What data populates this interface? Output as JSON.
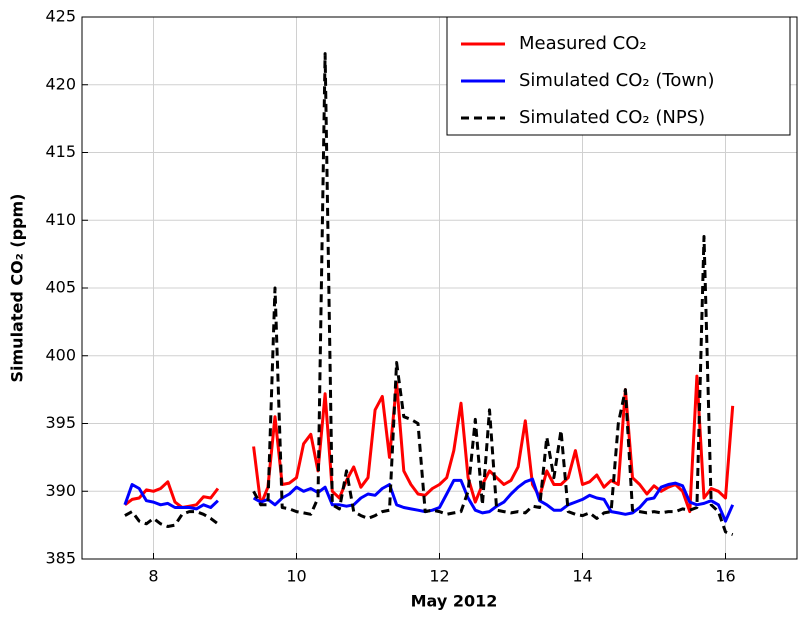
{
  "chart_data": {
    "type": "line",
    "ylabel": "Simulated CO₂ (ppm)",
    "xlabel": "May 2012",
    "x": [
      7.6,
      7.7,
      7.8,
      7.9,
      8.0,
      8.1,
      8.2,
      8.3,
      8.4,
      8.5,
      8.6,
      8.7,
      8.8,
      8.9,
      9.2,
      9.4,
      9.5,
      9.6,
      9.7,
      9.8,
      9.9,
      10.0,
      10.1,
      10.2,
      10.3,
      10.4,
      10.5,
      10.6,
      10.7,
      10.8,
      10.9,
      11.0,
      11.1,
      11.2,
      11.3,
      11.4,
      11.5,
      11.6,
      11.7,
      11.8,
      11.9,
      12.0,
      12.1,
      12.2,
      12.3,
      12.4,
      12.5,
      12.6,
      12.7,
      12.8,
      12.9,
      13.0,
      13.1,
      13.2,
      13.3,
      13.4,
      13.5,
      13.6,
      13.7,
      13.8,
      13.9,
      14.0,
      14.1,
      14.2,
      14.3,
      14.4,
      14.5,
      14.6,
      14.7,
      14.8,
      14.9,
      15.0,
      15.1,
      15.2,
      15.3,
      15.4,
      15.5,
      15.6,
      15.7,
      15.8,
      15.9,
      16.0,
      16.1
    ],
    "series": [
      {
        "name": "Measured CO₂",
        "color": "#ff0000",
        "dash": false,
        "values": [
          389.0,
          389.4,
          389.5,
          390.1,
          390.0,
          390.2,
          390.7,
          389.2,
          388.8,
          388.9,
          389.0,
          389.6,
          389.5,
          390.2,
          null,
          393.3,
          389.0,
          390.3,
          395.5,
          390.5,
          390.6,
          391.0,
          393.5,
          394.2,
          391.5,
          397.2,
          390.0,
          389.5,
          390.8,
          391.8,
          390.3,
          391.0,
          396.0,
          397.0,
          392.5,
          398.0,
          391.5,
          390.5,
          389.8,
          389.7,
          390.2,
          390.5,
          391.0,
          393.0,
          396.5,
          391.0,
          389.2,
          390.5,
          391.5,
          391.0,
          390.5,
          390.8,
          391.8,
          395.2,
          390.5,
          389.6,
          391.5,
          390.5,
          390.5,
          391.0,
          393.0,
          390.5,
          390.7,
          391.2,
          390.3,
          390.8,
          390.5,
          397.5,
          391.0,
          390.5,
          389.8,
          390.4,
          390.0,
          390.3,
          390.5,
          390.0,
          388.5,
          398.5,
          389.5,
          390.2,
          390.0,
          389.5,
          396.3
        ]
      },
      {
        "name": "Simulated CO₂ (Town)",
        "color": "#0000ff",
        "dash": false,
        "values": [
          389.0,
          390.5,
          390.2,
          389.3,
          389.2,
          389.0,
          389.1,
          388.8,
          388.8,
          388.8,
          388.7,
          389.0,
          388.8,
          389.3,
          null,
          389.5,
          389.2,
          389.4,
          389.0,
          389.5,
          389.8,
          390.3,
          390.0,
          390.2,
          389.9,
          390.3,
          389.0,
          389.0,
          388.9,
          389.0,
          389.5,
          389.8,
          389.7,
          390.2,
          390.5,
          389.0,
          388.8,
          388.7,
          388.6,
          388.5,
          388.6,
          388.8,
          389.8,
          390.8,
          390.8,
          389.5,
          388.6,
          388.4,
          388.5,
          388.9,
          389.2,
          389.8,
          390.3,
          390.7,
          390.9,
          389.3,
          389.0,
          388.6,
          388.6,
          389.0,
          389.2,
          389.4,
          389.7,
          389.5,
          389.4,
          388.5,
          388.4,
          388.3,
          388.4,
          388.8,
          389.4,
          389.5,
          390.3,
          390.5,
          390.6,
          390.4,
          389.2,
          389.0,
          389.1,
          389.3,
          389.0,
          387.8,
          389.0
        ]
      },
      {
        "name": "Simulated CO₂ (NPS)",
        "color": "#000000",
        "dash": true,
        "values": [
          388.2,
          388.5,
          387.8,
          387.6,
          388.0,
          387.6,
          387.4,
          387.5,
          388.3,
          388.5,
          388.5,
          388.3,
          388.0,
          387.6,
          null,
          390.0,
          389.0,
          389.0,
          405.0,
          388.8,
          388.7,
          388.5,
          388.4,
          388.3,
          389.5,
          422.3,
          389.0,
          388.7,
          391.5,
          388.5,
          388.2,
          388.0,
          388.2,
          388.5,
          388.6,
          399.5,
          395.5,
          395.3,
          395.0,
          388.5,
          388.6,
          388.5,
          388.3,
          388.4,
          388.5,
          390.0,
          395.3,
          389.0,
          396.0,
          388.6,
          388.5,
          388.4,
          388.5,
          388.4,
          388.9,
          388.8,
          394.0,
          391.0,
          394.5,
          388.5,
          388.3,
          388.2,
          388.4,
          388.0,
          388.4,
          388.5,
          395.0,
          397.5,
          388.6,
          388.5,
          388.4,
          388.5,
          388.4,
          388.5,
          388.5,
          388.7,
          388.6,
          388.8,
          408.8,
          389.0,
          388.5,
          387.0,
          386.8
        ]
      }
    ],
    "xlim": [
      7,
      17
    ],
    "xticks": [
      8,
      10,
      12,
      14,
      16
    ],
    "ylim": [
      385,
      425
    ],
    "yticks": [
      385,
      390,
      395,
      400,
      405,
      410,
      415,
      420,
      425
    ],
    "grid": true,
    "legend": "upper right"
  }
}
